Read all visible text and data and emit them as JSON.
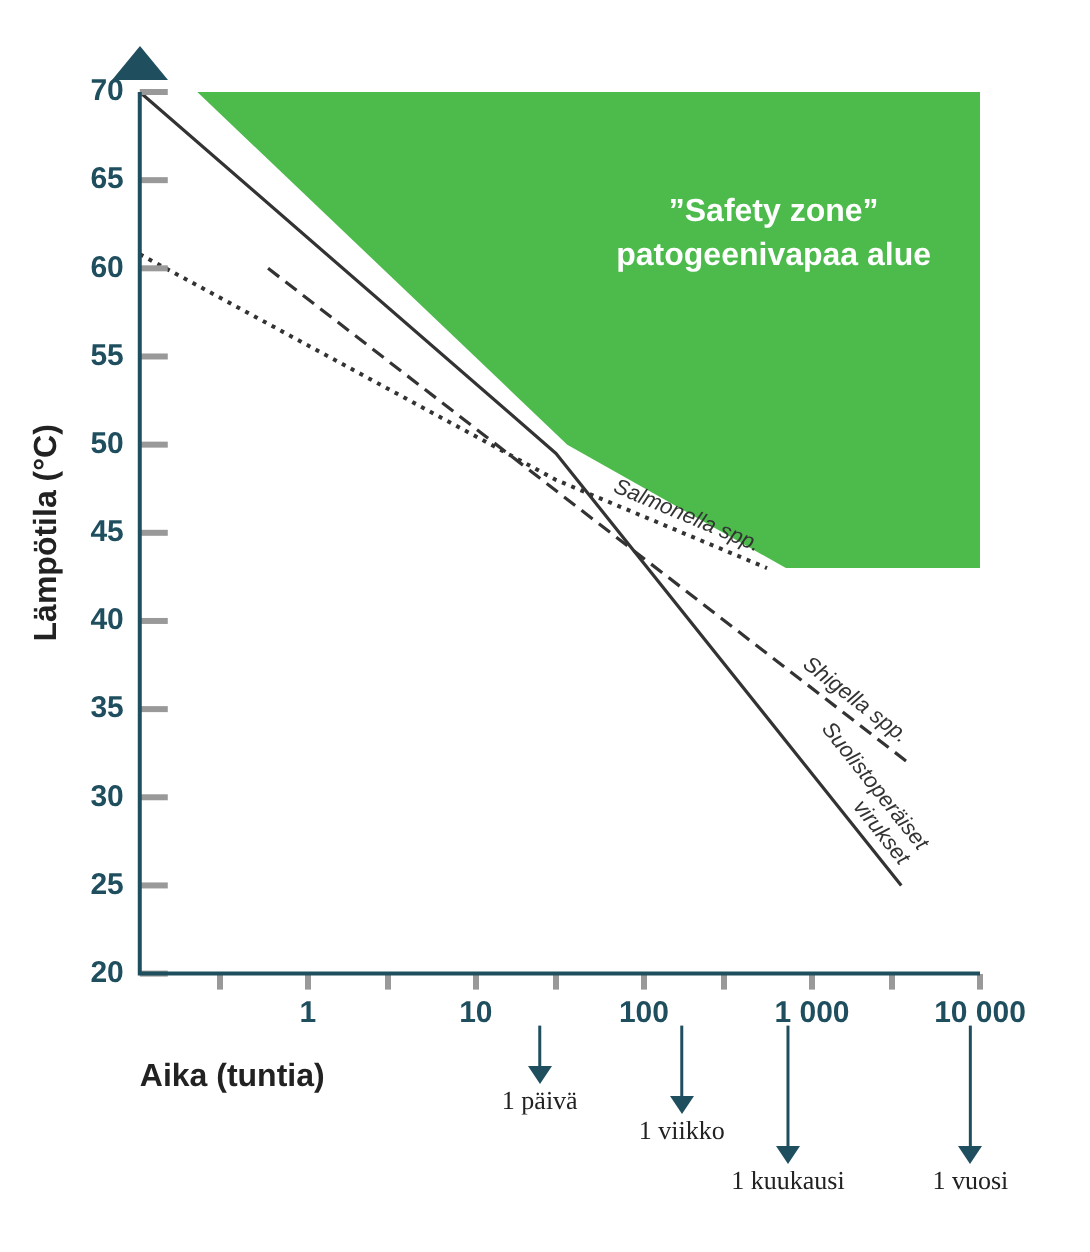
{
  "chart_data": {
    "type": "line",
    "xlabel": "Aika (tuntia)",
    "ylabel": "Lämpötila (°C)",
    "log": "x",
    "xlim": [
      0.1,
      10000
    ],
    "ylim": [
      20,
      70
    ],
    "xticks": [
      {
        "value": 0.3,
        "label": null
      },
      {
        "value": 1,
        "label": "1"
      },
      {
        "value": 3,
        "label": null
      },
      {
        "value": 10,
        "label": "10"
      },
      {
        "value": 30,
        "label": null
      },
      {
        "value": 100,
        "label": "100"
      },
      {
        "value": 300,
        "label": null
      },
      {
        "value": 1000,
        "label": "1 000"
      },
      {
        "value": 3000,
        "label": null
      },
      {
        "value": 10000,
        "label": "10 000"
      }
    ],
    "yticks": [
      20,
      25,
      30,
      35,
      40,
      45,
      50,
      55,
      60,
      65,
      70
    ],
    "grid": false,
    "legend": false,
    "marker": "none",
    "series": [
      {
        "name": "”Safety zone” patogeenivapaa alue",
        "type": "area",
        "color": "#4cbb4c",
        "x": [
          0.22,
          35,
          700,
          10000,
          10000
        ],
        "values": [
          70,
          50,
          43,
          43,
          70
        ]
      },
      {
        "name": "Salmonella spp.",
        "color": "#333333",
        "line_style": "dotted",
        "x": [
          0.1,
          30,
          540
        ],
        "values": [
          60.8,
          48,
          43
        ]
      },
      {
        "name": "Shigella spp.",
        "color": "#333333",
        "line_style": "dashed",
        "x": [
          0.58,
          3700
        ],
        "values": [
          60,
          32
        ]
      },
      {
        "name": "Suolistoperäiset virukset",
        "color": "#333333",
        "line_style": "solid",
        "x": [
          0.1,
          30,
          3400
        ],
        "values": [
          70,
          49.5,
          25
        ]
      }
    ],
    "ref_lines": [
      {
        "axis": "x",
        "value": 24,
        "label": "1 päivä"
      },
      {
        "axis": "x",
        "value": 168,
        "label": "1 viikko"
      },
      {
        "axis": "x",
        "value": 720,
        "label": "1 kuukausi"
      },
      {
        "axis": "x",
        "value": 8760,
        "label": "1 vuosi"
      }
    ]
  }
}
